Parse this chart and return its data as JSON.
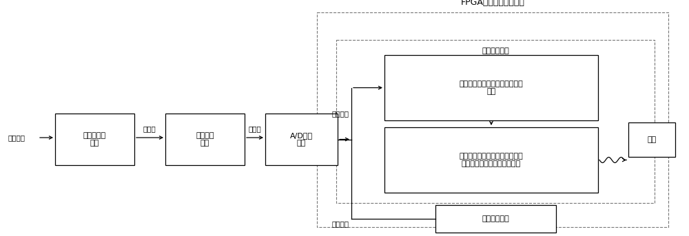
{
  "bg_color": "#ffffff",
  "text_color": "#000000",
  "fig_width": 10.0,
  "fig_height": 3.43,
  "title_fpga": "FPGA中央处理单元模块",
  "title_leak": "泄漏检测模块",
  "label_pressure_signal": "压力信号",
  "label_pressure_sensor": "压力传感器\n模块",
  "label_signal_cond": "信号调理\n模块",
  "label_ad": "A/D转换\n模块",
  "label_neural": "基于神经网络的异常信号检测子\n模块",
  "label_fuzzy": "基于双耦合时变时滞模糊双曲混\n沌模型的微弱泄漏检测子模块",
  "label_timing": "时序控制模块",
  "label_alarm": "报警",
  "label_digital": "数字信号",
  "label_electric1": "电信号",
  "label_electric2": "电信号",
  "label_control": "控制信号"
}
